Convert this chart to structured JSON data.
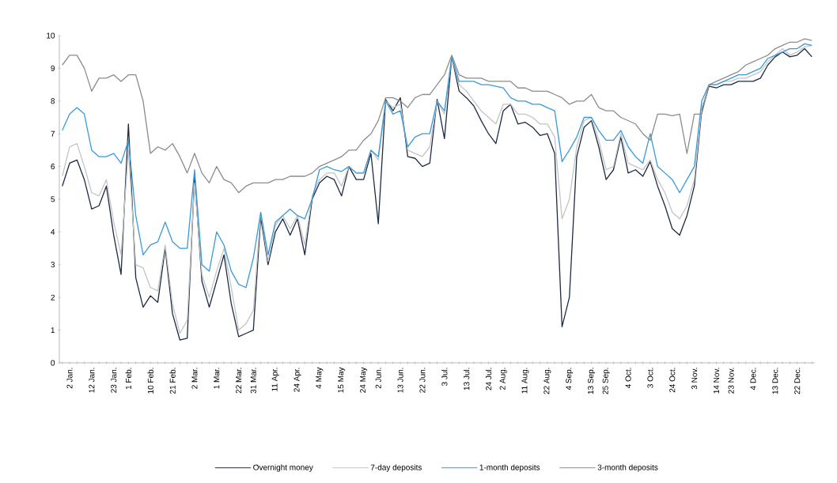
{
  "chart_data": {
    "type": "line",
    "categories": [
      null,
      "2 Jan.",
      null,
      null,
      "12 Jan.",
      null,
      null,
      "23 Jan.",
      null,
      "1 Feb.",
      null,
      null,
      "10 Feb.",
      null,
      null,
      "21 Feb.",
      null,
      null,
      "2 Mar.",
      null,
      null,
      "1 Mar.",
      null,
      null,
      "22 Mar.",
      null,
      "31 Mar.",
      null,
      null,
      "11 Apr.",
      null,
      null,
      "24 Apr.",
      null,
      null,
      "4 May",
      null,
      null,
      "15 May",
      null,
      null,
      "24 May",
      null,
      "2 Jun.",
      null,
      null,
      "13 Jun.",
      null,
      null,
      "22 Jun.",
      null,
      null,
      "3 Jul.",
      null,
      null,
      "13 Jul.",
      null,
      null,
      "24 Jul.",
      null,
      "2 Aug.",
      null,
      null,
      "11 Aug.",
      null,
      null,
      "22 Aug.",
      null,
      null,
      "4 Sep.",
      null,
      null,
      "13 Sep.",
      null,
      "25 Sep.",
      null,
      null,
      "4 Oct.",
      null,
      null,
      "3 Oct.",
      null,
      null,
      "24 Oct.",
      null,
      null,
      "3 Nov.",
      null,
      null,
      "14 Nov.",
      null,
      "23 Nov.",
      null,
      null,
      "4 Dec.",
      null,
      null,
      "13 Dec.",
      null,
      null,
      "22 Dec.",
      null,
      null
    ],
    "series": [
      {
        "name": "Overnight money",
        "color": "#1c2a44",
        "values": [
          5.4,
          6.1,
          6.2,
          5.6,
          4.7,
          4.8,
          5.4,
          3.9,
          2.7,
          7.3,
          2.6,
          1.7,
          2.05,
          1.85,
          3.5,
          1.5,
          0.7,
          0.75,
          5.7,
          2.5,
          1.7,
          2.5,
          3.3,
          1.8,
          0.8,
          0.9,
          1.0,
          4.45,
          3.0,
          4.0,
          4.4,
          3.9,
          4.4,
          3.3,
          5.0,
          5.5,
          5.7,
          5.6,
          5.1,
          6.0,
          5.6,
          5.6,
          6.4,
          4.25,
          8.05,
          7.7,
          8.1,
          6.3,
          6.25,
          6.0,
          6.1,
          8.05,
          6.85,
          9.35,
          8.3,
          8.1,
          7.85,
          7.4,
          7.0,
          6.7,
          7.7,
          7.9,
          7.3,
          7.35,
          7.2,
          6.95,
          7.0,
          6.4,
          1.1,
          2.0,
          6.3,
          7.2,
          7.4,
          6.6,
          5.6,
          5.9,
          6.9,
          5.8,
          5.9,
          5.7,
          6.15,
          5.4,
          4.8,
          4.1,
          3.9,
          4.5,
          5.4,
          7.7,
          8.45,
          8.4,
          8.5,
          8.5,
          8.6,
          8.6,
          8.6,
          8.7,
          9.1,
          9.35,
          9.5,
          9.35,
          9.4,
          9.6,
          9.35
        ]
      },
      {
        "name": "7-day deposits",
        "color": "#c4c4c4",
        "values": [
          5.7,
          6.6,
          6.7,
          6.0,
          5.2,
          5.1,
          5.6,
          4.3,
          3.3,
          6.5,
          3.0,
          2.9,
          2.3,
          2.2,
          3.6,
          1.8,
          0.9,
          1.3,
          5.5,
          2.7,
          2.0,
          2.8,
          3.5,
          2.3,
          1.0,
          1.2,
          1.6,
          4.6,
          3.1,
          4.2,
          4.5,
          4.1,
          4.5,
          3.6,
          5.1,
          5.6,
          5.8,
          5.8,
          5.4,
          6.0,
          5.8,
          5.8,
          6.5,
          6.2,
          8.0,
          7.8,
          7.9,
          6.5,
          6.4,
          6.3,
          6.6,
          8.0,
          7.6,
          9.35,
          8.5,
          8.3,
          8.0,
          7.7,
          7.5,
          7.3,
          7.9,
          7.9,
          7.6,
          7.6,
          7.5,
          7.3,
          7.3,
          6.9,
          4.4,
          5.0,
          6.6,
          7.4,
          7.5,
          6.8,
          5.9,
          6.0,
          7.0,
          6.1,
          6.0,
          5.9,
          6.2,
          5.6,
          5.2,
          4.6,
          4.4,
          4.8,
          5.6,
          7.8,
          8.5,
          8.5,
          8.6,
          8.6,
          8.7,
          8.7,
          8.8,
          8.9,
          9.2,
          9.4,
          9.6,
          9.4,
          9.5,
          9.65,
          9.7
        ]
      },
      {
        "name": "1-month deposits",
        "color": "#3a9ad9",
        "values": [
          7.1,
          7.6,
          7.8,
          7.6,
          6.5,
          6.3,
          6.3,
          6.4,
          6.1,
          6.8,
          4.5,
          3.3,
          3.6,
          3.7,
          4.3,
          3.7,
          3.5,
          3.5,
          5.9,
          3.0,
          2.8,
          4.0,
          3.6,
          2.8,
          2.4,
          2.3,
          3.2,
          4.6,
          3.3,
          4.3,
          4.5,
          4.7,
          4.5,
          4.4,
          5.0,
          5.9,
          6.0,
          5.9,
          5.85,
          6.0,
          5.8,
          5.8,
          6.5,
          6.3,
          8.0,
          7.6,
          7.7,
          6.6,
          6.9,
          7.0,
          7.0,
          8.0,
          7.7,
          9.35,
          8.6,
          8.6,
          8.6,
          8.5,
          8.5,
          8.45,
          8.4,
          8.1,
          8.0,
          8.0,
          7.9,
          7.9,
          7.8,
          7.7,
          6.15,
          6.5,
          6.9,
          7.5,
          7.5,
          7.1,
          6.8,
          6.8,
          7.1,
          6.6,
          6.3,
          6.1,
          7.0,
          6.0,
          5.8,
          5.6,
          5.2,
          5.6,
          6.0,
          8.0,
          8.5,
          8.5,
          8.6,
          8.7,
          8.8,
          8.8,
          8.9,
          9.0,
          9.3,
          9.4,
          9.5,
          9.6,
          9.6,
          9.75,
          9.7
        ]
      },
      {
        "name": "3-month deposits",
        "color": "#8c8c8c",
        "values": [
          9.1,
          9.4,
          9.4,
          9.0,
          8.3,
          8.7,
          8.7,
          8.8,
          8.6,
          8.8,
          8.8,
          8.0,
          6.4,
          6.6,
          6.5,
          6.7,
          6.3,
          5.8,
          6.4,
          5.8,
          5.5,
          6.0,
          5.6,
          5.5,
          5.2,
          5.4,
          5.5,
          5.5,
          5.5,
          5.6,
          5.6,
          5.7,
          5.7,
          5.7,
          5.8,
          6.0,
          6.1,
          6.2,
          6.3,
          6.5,
          6.5,
          6.8,
          7.0,
          7.4,
          8.1,
          8.1,
          8.0,
          7.8,
          8.1,
          8.2,
          8.2,
          8.5,
          8.8,
          9.4,
          8.8,
          8.7,
          8.7,
          8.7,
          8.6,
          8.6,
          8.6,
          8.6,
          8.4,
          8.4,
          8.3,
          8.3,
          8.3,
          8.2,
          8.1,
          7.9,
          8.0,
          8.0,
          8.2,
          7.8,
          7.7,
          7.7,
          7.5,
          7.4,
          7.3,
          7.0,
          6.8,
          7.6,
          7.6,
          7.55,
          7.6,
          6.4,
          7.6,
          7.6,
          8.5,
          8.6,
          8.7,
          8.8,
          8.9,
          9.1,
          9.2,
          9.3,
          9.4,
          9.6,
          9.7,
          9.8,
          9.8,
          9.9,
          9.85
        ]
      }
    ],
    "ylim": [
      0,
      10
    ],
    "yticks": [
      0,
      1,
      2,
      3,
      4,
      5,
      6,
      7,
      8,
      9,
      10
    ],
    "grid": false,
    "legend": "bottom",
    "marker": "none",
    "line_style": "solid"
  }
}
